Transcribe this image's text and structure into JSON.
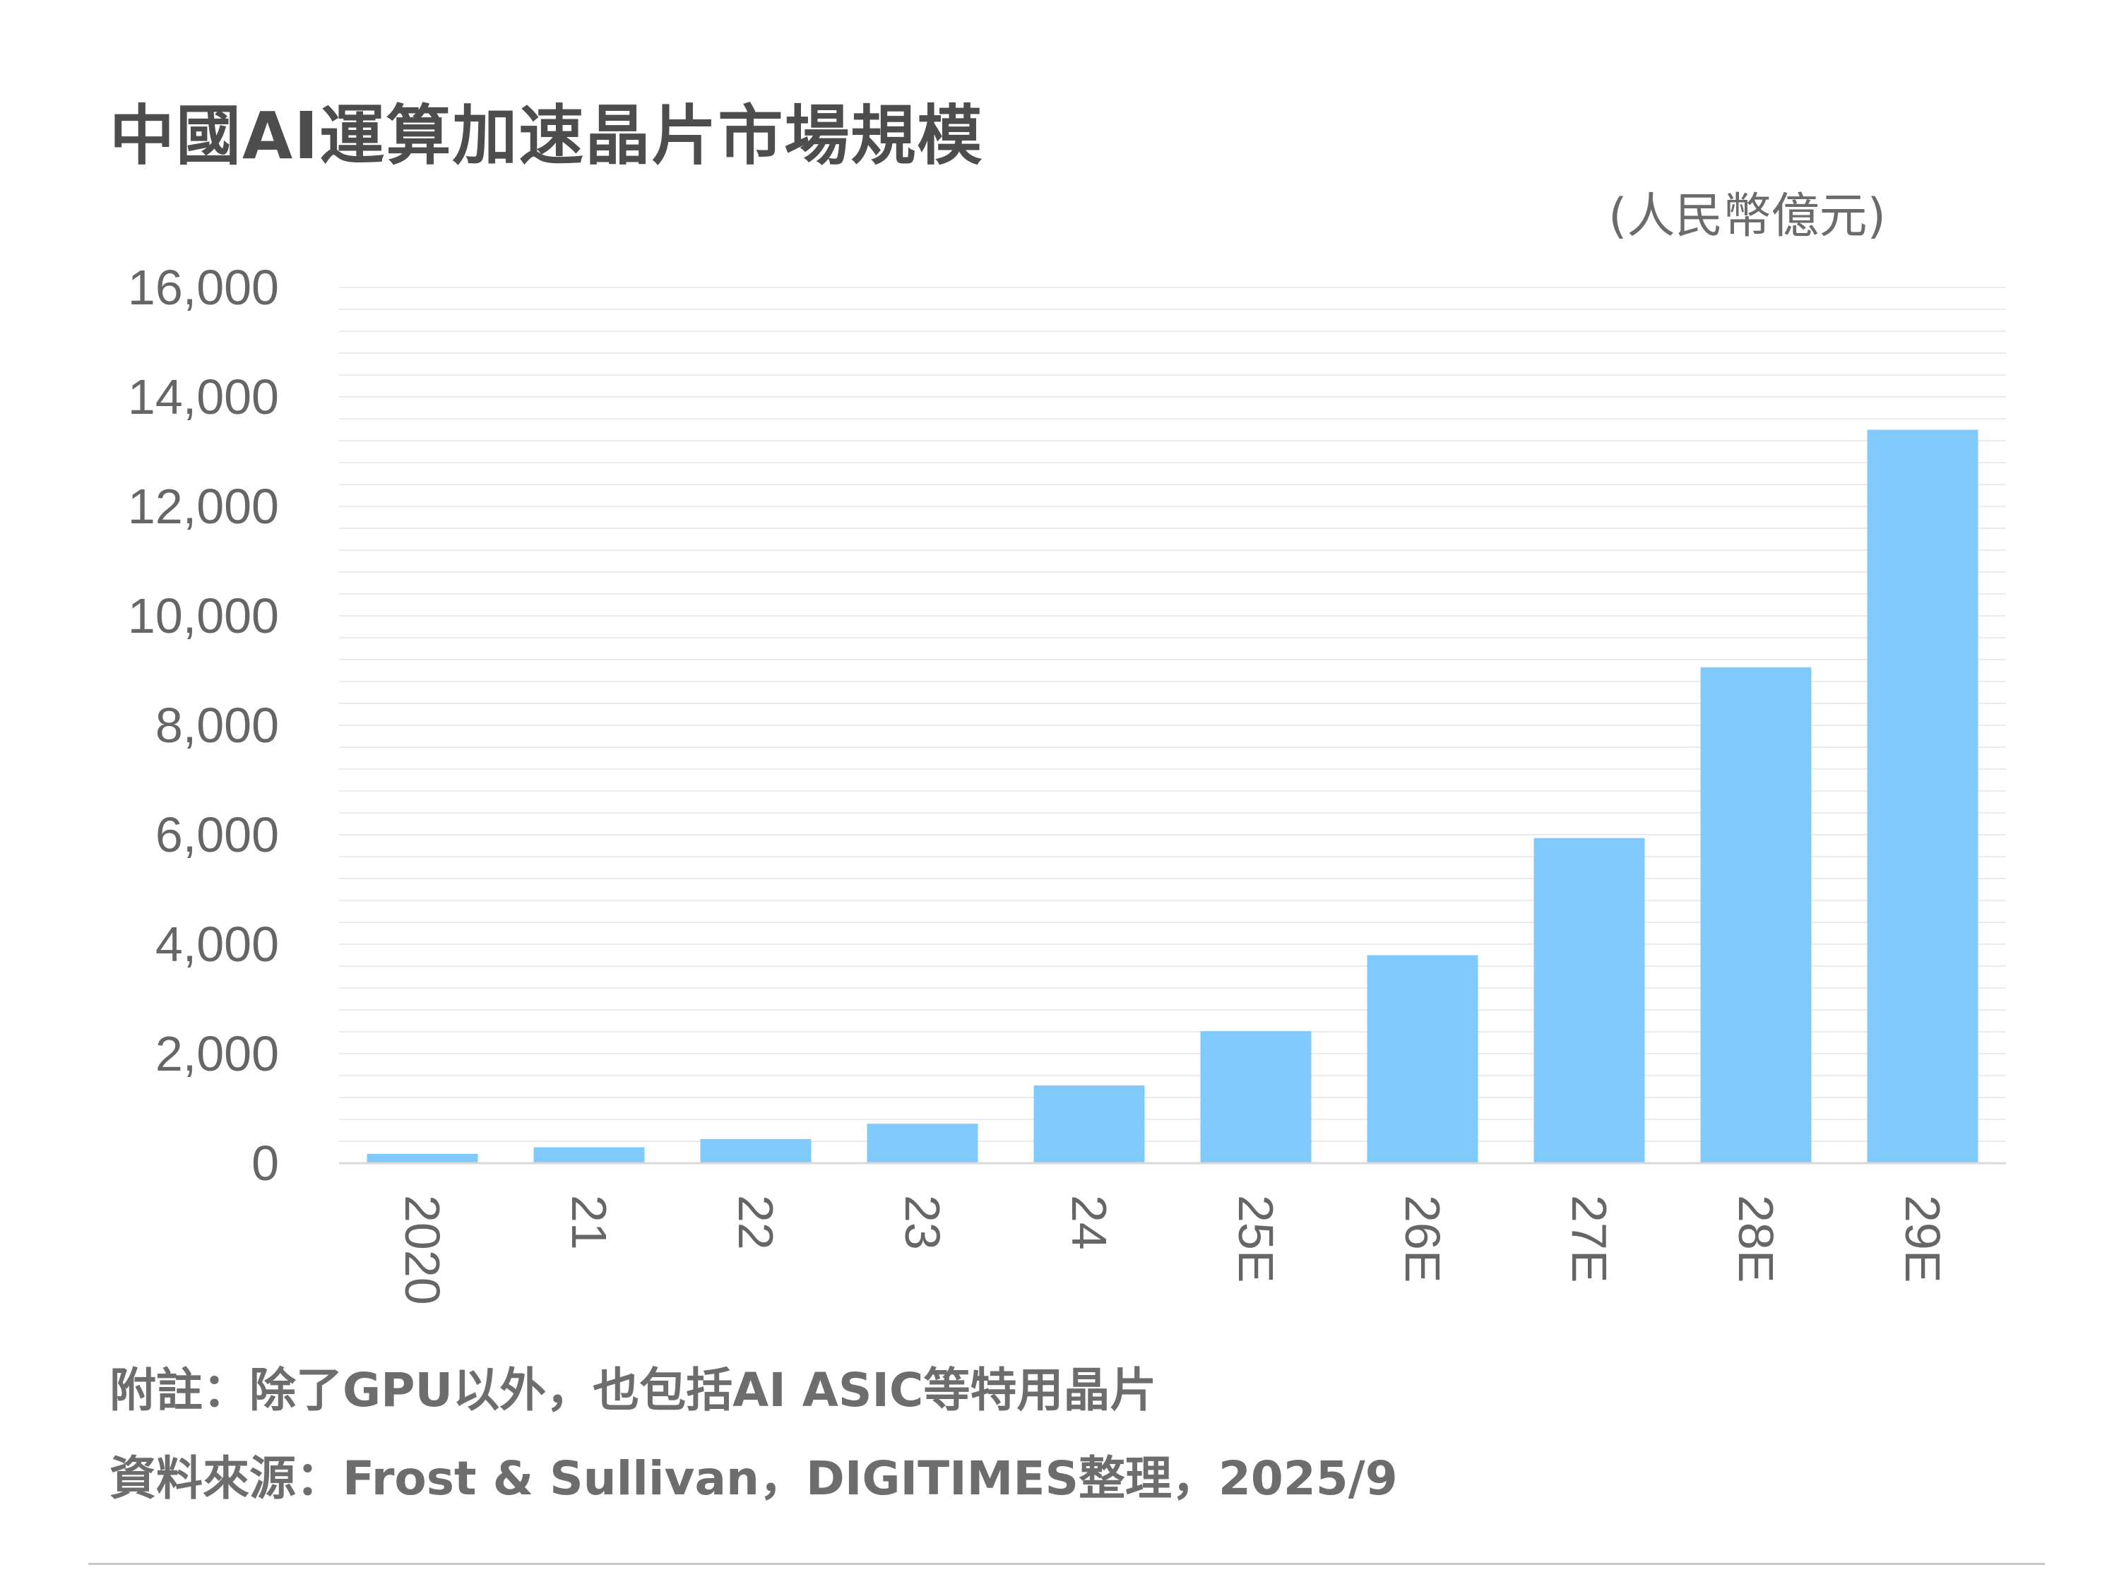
{
  "title": "中國AI運算加速晶片市場規模",
  "unit_label": "(人民幣億元)",
  "notes": {
    "note": "附註：除了GPU以外，也包括AI ASIC等特用晶片",
    "source": "資料來源：Frost & Sullivan，DIGITIMES整理，2025/9"
  },
  "colors": {
    "bar": "#7fcafa",
    "gridline": "#ebebeb",
    "axis": "#d9d9d9",
    "text": "#666666"
  },
  "chart_data": {
    "type": "bar",
    "title": "中國AI運算加速晶片市場規模",
    "unit": "(人民幣億元)",
    "categories": [
      "2020",
      "21",
      "22",
      "23",
      "24",
      "25E",
      "26E",
      "27E",
      "28E",
      "29E"
    ],
    "values": [
      170,
      290,
      440,
      720,
      1420,
      2410,
      3800,
      5940,
      9060,
      13400
    ],
    "ylim": [
      0,
      16000
    ],
    "yticks": [
      0,
      2000,
      4000,
      6000,
      8000,
      10000,
      12000,
      14000,
      16000
    ],
    "ytick_labels": [
      "0",
      "2,000",
      "4,000",
      "6,000",
      "8,000",
      "10,000",
      "12,000",
      "14,000",
      "16,000"
    ],
    "minor_grid_step": 400,
    "grid": true,
    "xtick_rotation": 90
  }
}
